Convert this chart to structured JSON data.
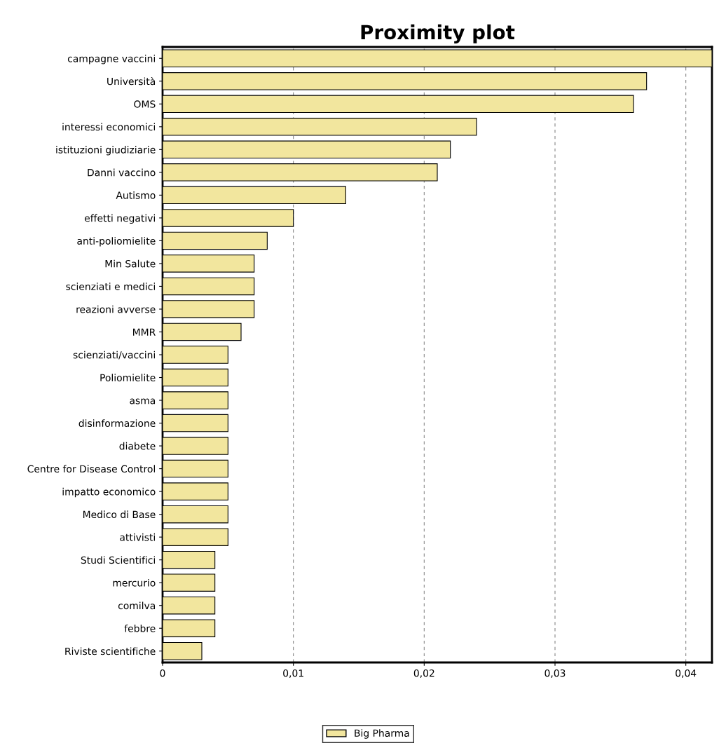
{
  "chart_data": {
    "type": "bar",
    "title": "Proximity plot",
    "orientation": "horizontal",
    "categories": [
      "campagne vaccini",
      "Università",
      "OMS",
      "interessi economici",
      "istituzioni giudiziarie",
      "Danni vaccino",
      "Autismo",
      "effetti negativi",
      "anti-poliomielite",
      "Min Salute",
      "scienziati e medici",
      "reazioni avverse",
      "MMR",
      "scienziati/vaccini",
      "Poliomielite",
      "asma",
      "disinformazione",
      "diabete",
      "Centre for Disease Control",
      "impatto economico",
      "Medico di Base",
      "attivisti",
      "Studi Scientifici",
      "mercurio",
      "comilva",
      "febbre",
      "Riviste scientifiche"
    ],
    "series": [
      {
        "name": "Big Pharma",
        "color": "#f2e69e",
        "values": [
          0.042,
          0.037,
          0.036,
          0.024,
          0.022,
          0.021,
          0.014,
          0.01,
          0.008,
          0.007,
          0.007,
          0.007,
          0.006,
          0.005,
          0.005,
          0.005,
          0.005,
          0.005,
          0.005,
          0.005,
          0.005,
          0.005,
          0.004,
          0.004,
          0.004,
          0.004,
          0.003
        ]
      }
    ],
    "xlim": [
      0,
      0.042
    ],
    "xticks": [
      0,
      {
        "value": 0.01,
        "label": "0,01"
      },
      {
        "value": 0.02,
        "label": "0,02"
      },
      {
        "value": 0.03,
        "label": "0,03"
      },
      {
        "value": 0.04,
        "label": "0,04"
      }
    ],
    "grid": "x",
    "legend": "bottom"
  }
}
